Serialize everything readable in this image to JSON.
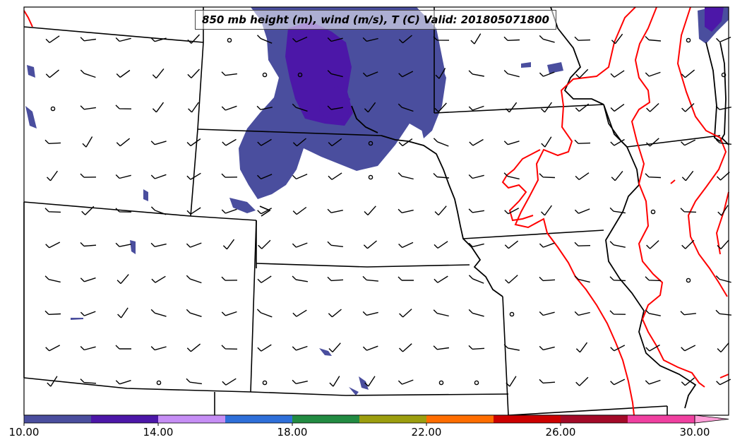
{
  "title": "850 mb height (m), wind (m/s), T (C) Valid: 201805071800",
  "colorbar": {
    "tick_labels": [
      "10.00",
      "14.00",
      "18.00",
      "22.00",
      "26.00",
      "30.00"
    ],
    "colors": [
      "#4a4e9e",
      "#4c17a8",
      "#c68ef5",
      "#2e6fd9",
      "#228b42",
      "#9c9e0e",
      "#ff6d00",
      "#cc0000",
      "#a30a28",
      "#f040a0",
      "#ff9ed8"
    ]
  },
  "chart_data": {
    "type": "heatmap",
    "title": "850 mb height (m), wind (m/s), T (C) Valid: 201805071800",
    "valid_time": "201805071800",
    "colorbar_range": [
      10,
      30
    ],
    "colorbar_ticks": [
      10,
      14,
      18,
      22,
      26,
      30
    ],
    "contour_color": "#ff0000"
  }
}
